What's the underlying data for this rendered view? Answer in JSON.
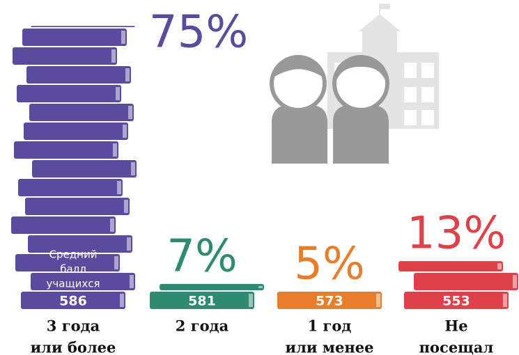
{
  "chart_data": {
    "type": "book-stack",
    "categories": [
      [
        "3 года",
        "или более"
      ],
      [
        "2 года"
      ],
      [
        "1 год",
        "или менее"
      ],
      [
        "Не",
        "посещал"
      ]
    ],
    "values": [
      75,
      7,
      5,
      13
    ],
    "value_labels": [
      "75%",
      "7%",
      "5%",
      "13%"
    ],
    "scores": [
      586,
      581,
      573,
      553
    ],
    "score_note": [
      "Средний",
      "балл",
      "учащихся"
    ],
    "colors": [
      "#5b4a9e",
      "#2e8b72",
      "#e87d2a",
      "#e0404a"
    ]
  }
}
